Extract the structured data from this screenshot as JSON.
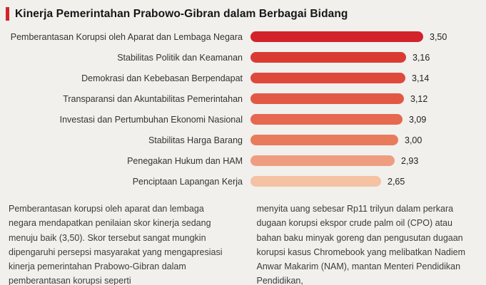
{
  "title": "Kinerja Pemerintahan Prabowo-Gibran dalam Berbagai Bidang",
  "accent_color": "#d2232a",
  "chart_data": {
    "type": "bar",
    "orientation": "horizontal",
    "title": "Kinerja Pemerintahan Prabowo-Gibran dalam Berbagai Bidang",
    "categories": [
      "Pemberantasan Korupsi oleh Aparat dan Lembaga Negara",
      "Stabilitas Politik dan Keamanan",
      "Demokrasi dan Kebebasan Berpendapat",
      "Transparansi dan Akuntabilitas Pemerintahan",
      "Investasi dan Pertumbuhan Ekonomi Nasional",
      "Stabilitas Harga Barang",
      "Penegakan Hukum dan HAM",
      "Penciptaan Lapangan Kerja"
    ],
    "values": [
      3.5,
      3.16,
      3.14,
      3.12,
      3.09,
      3.0,
      2.93,
      2.65
    ],
    "value_labels": [
      "3,50",
      "3,16",
      "3,14",
      "3,12",
      "3,09",
      "3,00",
      "2,93",
      "2,65"
    ],
    "bar_colors": [
      "#d2232a",
      "#d93b33",
      "#dd4a3b",
      "#e15944",
      "#e5684f",
      "#e97b5d",
      "#ef9d81",
      "#f5c2a4"
    ],
    "xlim": [
      0,
      3.5
    ],
    "grid": false,
    "legend": false,
    "value_label_position": "end-of-bar",
    "label_position": "left-of-bar"
  },
  "body_text": {
    "left_paragraph": "Pemberantasan korupsi oleh aparat dan lembaga negara mendapatkan penilaian skor kinerja sedang menuju baik (3,50). Skor tersebut sangat mungkin dipengaruhi persepsi masyarakat yang mengapresiasi kinerja pemerintahan Prabowo-Gibran dalam pemberantasan korupsi seperti",
    "right_paragraph": "menyita uang sebesar Rp11 trilyun dalam perkara dugaan korupsi ekspor crude palm oil (CPO) atau bahan baku minyak goreng dan pengusutan dugaan korupsi kasus Chromebook yang melibatkan Nadiem Anwar Makarim (NAM), mantan Menteri Pendidikan Pendidikan,"
  }
}
